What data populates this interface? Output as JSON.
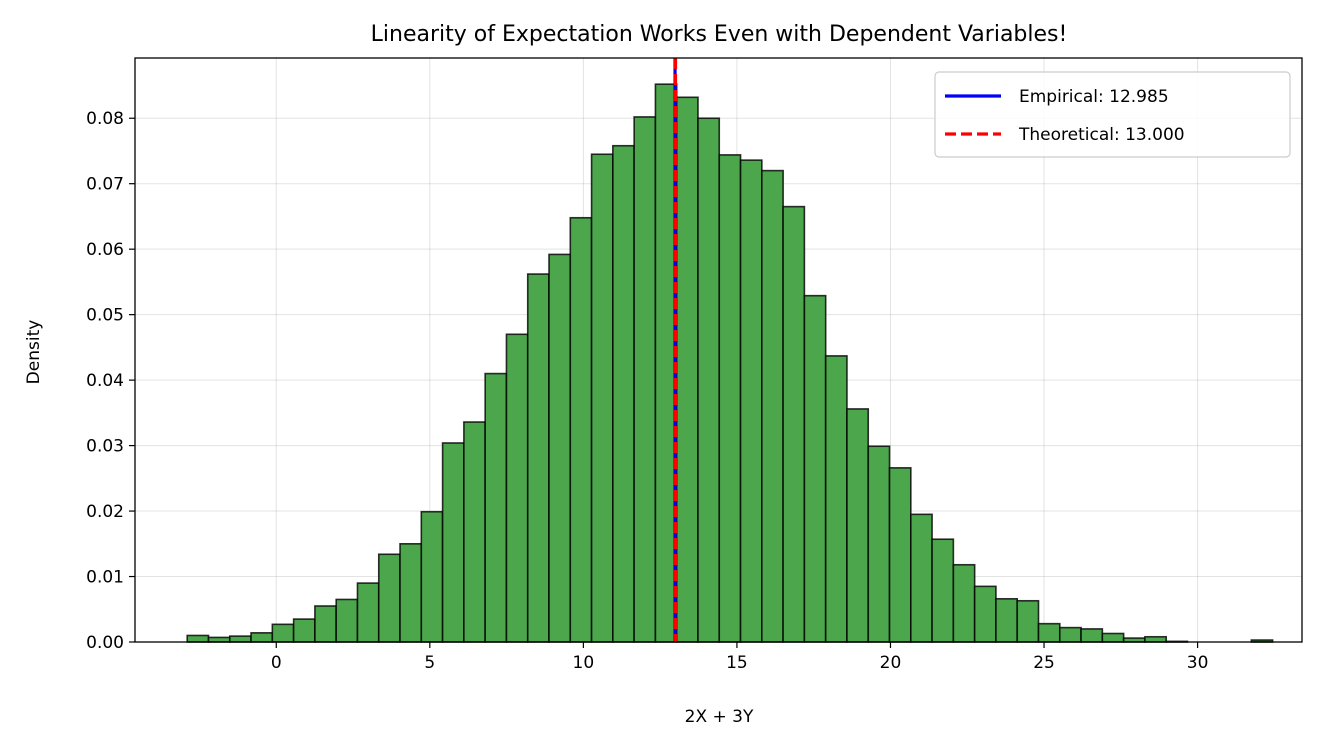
{
  "chart_data": {
    "type": "bar",
    "subtype": "histogram",
    "title": "Linearity of Expectation Works Even with Dependent Variables!",
    "xlabel": "2X + 3Y",
    "ylabel": "Density",
    "xlim": [
      -4.6,
      33.4
    ],
    "ylim": [
      0,
      0.0892
    ],
    "xticks": [
      0,
      5,
      10,
      15,
      20,
      25,
      30
    ],
    "yticks": [
      0.0,
      0.01,
      0.02,
      0.03,
      0.04,
      0.05,
      0.06,
      0.07,
      0.08
    ],
    "grid": true,
    "bar_color": "#4ca64c",
    "bin_start": -2.9,
    "bin_width": 0.693,
    "values": [
      0.001,
      0.0007,
      0.0009,
      0.0014,
      0.0027,
      0.0035,
      0.0055,
      0.0065,
      0.009,
      0.0134,
      0.015,
      0.0199,
      0.0304,
      0.0336,
      0.041,
      0.047,
      0.0562,
      0.0592,
      0.0648,
      0.0745,
      0.0758,
      0.0802,
      0.0852,
      0.0832,
      0.08,
      0.0744,
      0.0736,
      0.072,
      0.0665,
      0.0529,
      0.0437,
      0.0356,
      0.0299,
      0.0266,
      0.0195,
      0.0157,
      0.0118,
      0.0085,
      0.0066,
      0.0063,
      0.0028,
      0.0022,
      0.002,
      0.0013,
      0.0006,
      0.0008,
      0.0001,
      0.0,
      0.0,
      0.0,
      0.0003
    ],
    "lines": [
      {
        "name": "Empirical: 12.985",
        "x": 12.985,
        "color": "#0000ff",
        "style": "solid"
      },
      {
        "name": "Theoretical: 13.000",
        "x": 13.0,
        "color": "#ff0000",
        "style": "dashed"
      }
    ],
    "legend_position": "top-right"
  }
}
